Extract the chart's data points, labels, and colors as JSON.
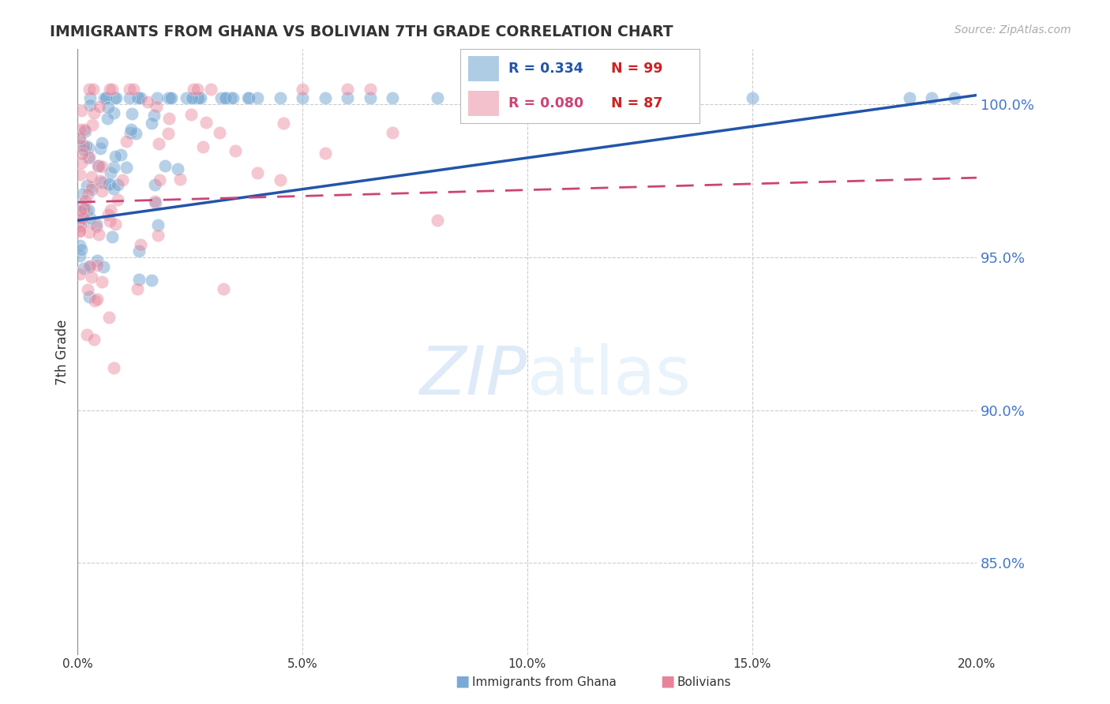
{
  "title": "IMMIGRANTS FROM GHANA VS BOLIVIAN 7TH GRADE CORRELATION CHART",
  "source": "Source: ZipAtlas.com",
  "ylabel": "7th Grade",
  "ytick_values": [
    0.85,
    0.9,
    0.95,
    1.0
  ],
  "ytick_labels": [
    "85.0%",
    "90.0%",
    "95.0%",
    "100.0%"
  ],
  "xlim": [
    0.0,
    0.2
  ],
  "ylim": [
    0.82,
    1.018
  ],
  "blue_color": "#7aaad4",
  "pink_color": "#e8849a",
  "blue_line_color": "#2255aa",
  "pink_line_color": "#cc4477",
  "grid_color": "#cccccc",
  "title_color": "#333333",
  "source_color": "#aaaaaa",
  "ytick_color": "#4477cc",
  "xtick_color": "#333333",
  "legend_r_blue": "R = 0.334",
  "legend_n_blue": "N = 99",
  "legend_r_pink": "R = 0.080",
  "legend_n_pink": "N = 87",
  "bottom_legend_blue": "Immigrants from Ghana",
  "bottom_legend_pink": "Bolivians",
  "blue_line_y0": 0.962,
  "blue_line_y1": 1.003,
  "pink_line_y0": 0.968,
  "pink_line_y1": 0.976
}
